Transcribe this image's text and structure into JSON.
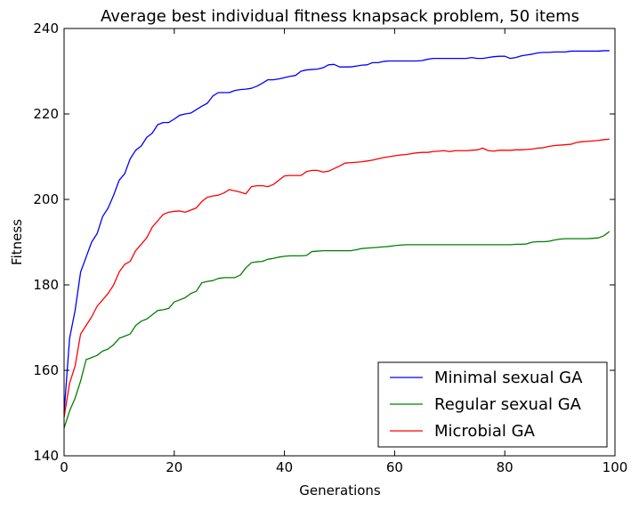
{
  "chart_data": {
    "type": "line",
    "title": "Average best individual fitness knapsack problem, 50 items",
    "xlabel": "Generations",
    "ylabel": "Fitness",
    "xlim": [
      0,
      100
    ],
    "ylim": [
      140,
      240
    ],
    "xticks": [
      0,
      20,
      40,
      60,
      80,
      100
    ],
    "yticks": [
      140,
      160,
      180,
      200,
      220,
      240
    ],
    "grid": false,
    "legend_position": "lower-right",
    "x": [
      0,
      1,
      2,
      3,
      4,
      5,
      6,
      7,
      8,
      9,
      10,
      11,
      12,
      13,
      14,
      15,
      16,
      17,
      18,
      19,
      20,
      21,
      22,
      23,
      24,
      25,
      26,
      27,
      28,
      29,
      30,
      31,
      32,
      33,
      34,
      35,
      36,
      37,
      38,
      39,
      40,
      41,
      42,
      43,
      44,
      45,
      46,
      47,
      48,
      49,
      50,
      51,
      52,
      53,
      54,
      55,
      56,
      57,
      58,
      59,
      60,
      61,
      62,
      63,
      64,
      65,
      66,
      67,
      68,
      69,
      70,
      71,
      72,
      73,
      74,
      75,
      76,
      77,
      78,
      79,
      80,
      81,
      82,
      83,
      84,
      85,
      86,
      87,
      88,
      89,
      90,
      91,
      92,
      93,
      94,
      95,
      96,
      97,
      98,
      99
    ],
    "series": [
      {
        "name": "Minimal sexual GA",
        "color": "#0000ff",
        "values": [
          150.0,
          167.5,
          174.0,
          183.0,
          186.5,
          190.0,
          192.0,
          196.0,
          198.0,
          201.0,
          204.5,
          206.0,
          209.5,
          211.5,
          212.5,
          214.5,
          215.5,
          217.5,
          218.0,
          218.0,
          218.8,
          219.7,
          220.0,
          220.2,
          221.0,
          221.8,
          222.5,
          224.2,
          225.0,
          225.0,
          225.0,
          225.5,
          225.7,
          225.8,
          226.0,
          226.5,
          227.2,
          228.0,
          228.0,
          228.2,
          228.5,
          228.8,
          229.0,
          230.0,
          230.3,
          230.4,
          230.5,
          230.8,
          231.5,
          231.6,
          231.0,
          231.0,
          231.0,
          231.2,
          231.4,
          231.5,
          232.0,
          232.0,
          232.3,
          232.4,
          232.4,
          232.4,
          232.4,
          232.4,
          232.4,
          232.5,
          232.8,
          233.0,
          233.0,
          233.0,
          233.0,
          233.0,
          233.0,
          233.0,
          233.2,
          233.0,
          233.0,
          233.2,
          233.4,
          233.5,
          233.5,
          233.0,
          233.2,
          233.6,
          233.8,
          234.0,
          234.3,
          234.4,
          234.4,
          234.5,
          234.5,
          234.5,
          234.7,
          234.7,
          234.7,
          234.7,
          234.7,
          234.7,
          234.8,
          234.8
        ]
      },
      {
        "name": "Regular sexual GA",
        "color": "#008000",
        "values": [
          146.5,
          150.5,
          153.5,
          157.5,
          162.5,
          163.0,
          163.5,
          164.5,
          165.0,
          166.0,
          167.5,
          168.0,
          168.5,
          170.5,
          171.5,
          172.0,
          173.0,
          174.0,
          174.2,
          174.5,
          176.0,
          176.5,
          177.0,
          178.0,
          178.5,
          180.5,
          180.8,
          181.0,
          181.5,
          181.7,
          181.7,
          181.7,
          182.3,
          184.0,
          185.2,
          185.4,
          185.5,
          186.0,
          186.2,
          186.5,
          186.7,
          186.8,
          186.8,
          186.8,
          186.9,
          187.8,
          187.9,
          188.0,
          188.0,
          188.0,
          188.0,
          188.0,
          188.0,
          188.2,
          188.5,
          188.6,
          188.7,
          188.8,
          188.9,
          189.0,
          189.2,
          189.3,
          189.4,
          189.4,
          189.4,
          189.4,
          189.4,
          189.4,
          189.4,
          189.4,
          189.4,
          189.4,
          189.4,
          189.4,
          189.4,
          189.4,
          189.4,
          189.4,
          189.4,
          189.4,
          189.4,
          189.4,
          189.5,
          189.5,
          189.6,
          190.0,
          190.1,
          190.1,
          190.2,
          190.5,
          190.7,
          190.8,
          190.8,
          190.8,
          190.8,
          190.8,
          190.9,
          191.0,
          191.5,
          192.5
        ]
      },
      {
        "name": "Microbial GA",
        "color": "#ff0000",
        "values": [
          149.0,
          157.0,
          161.0,
          168.5,
          170.5,
          172.5,
          175.0,
          176.5,
          178.0,
          180.0,
          183.0,
          184.8,
          185.5,
          188.0,
          189.5,
          191.0,
          193.5,
          195.0,
          196.5,
          197.0,
          197.2,
          197.3,
          197.0,
          197.5,
          198.0,
          199.5,
          200.5,
          200.8,
          201.0,
          201.5,
          202.3,
          202.0,
          201.7,
          201.3,
          203.0,
          203.2,
          203.2,
          203.0,
          203.5,
          204.5,
          205.5,
          205.6,
          205.6,
          205.6,
          206.5,
          206.8,
          206.8,
          206.4,
          206.6,
          207.2,
          207.8,
          208.5,
          208.6,
          208.7,
          208.8,
          209.0,
          209.2,
          209.5,
          209.8,
          210.0,
          210.2,
          210.4,
          210.5,
          210.7,
          210.9,
          211.0,
          211.0,
          211.2,
          211.3,
          211.4,
          211.2,
          211.4,
          211.4,
          211.4,
          211.5,
          211.6,
          212.0,
          211.4,
          211.3,
          211.5,
          211.5,
          211.5,
          211.6,
          211.6,
          211.7,
          211.8,
          212.0,
          212.1,
          212.4,
          212.6,
          212.7,
          212.8,
          212.9,
          213.3,
          213.5,
          213.6,
          213.7,
          213.8,
          214.0,
          214.1
        ]
      }
    ]
  }
}
